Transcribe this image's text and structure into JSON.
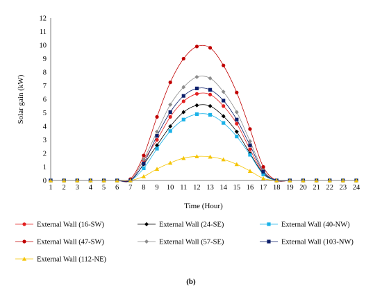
{
  "chart_data": {
    "type": "line",
    "xlabel": "Time (Hour)",
    "ylabel": "Solar gain (kW)",
    "x": [
      1,
      2,
      3,
      4,
      5,
      6,
      7,
      8,
      9,
      10,
      11,
      12,
      13,
      14,
      15,
      16,
      17,
      18,
      19,
      20,
      21,
      22,
      23,
      24
    ],
    "xlim": [
      1,
      24
    ],
    "ylim": [
      0,
      12
    ],
    "yticks": [
      0,
      1,
      2,
      3,
      4,
      5,
      6,
      7,
      8,
      9,
      10,
      11,
      12
    ],
    "grid": false,
    "legend_position": "bottom",
    "series": [
      {
        "name": "External Wall (16-SW)",
        "color": "#e32020",
        "marker": "circle",
        "values": [
          0,
          0,
          0,
          0,
          0,
          0,
          0,
          1.5,
          3.0,
          4.7,
          5.85,
          6.4,
          6.35,
          5.5,
          4.2,
          2.3,
          0.55,
          0,
          0,
          0,
          0,
          0,
          0,
          0
        ]
      },
      {
        "name": "External Wall (24-SE)",
        "color": "#000000",
        "marker": "diamond",
        "values": [
          0,
          0,
          0,
          0,
          0,
          0,
          0,
          1.2,
          2.6,
          4.0,
          5.05,
          5.55,
          5.5,
          4.75,
          3.6,
          2.0,
          0.5,
          0,
          0,
          0,
          0,
          0,
          0,
          0
        ]
      },
      {
        "name": "External Wall (40-NW)",
        "color": "#1ab2e8",
        "marker": "square",
        "values": [
          0,
          0,
          0,
          0,
          0,
          0,
          0,
          0.9,
          2.35,
          3.65,
          4.5,
          4.9,
          4.85,
          4.25,
          3.25,
          1.9,
          0.45,
          0,
          0,
          0,
          0,
          0,
          0,
          0
        ]
      },
      {
        "name": "External Wall (47-SW)",
        "color": "#c00000",
        "marker": "circle",
        "values": [
          0,
          0,
          0,
          0,
          0,
          0,
          0.1,
          1.85,
          4.7,
          7.25,
          9.0,
          9.9,
          9.8,
          8.5,
          6.5,
          3.8,
          1.0,
          0,
          0,
          0,
          0,
          0,
          0,
          0
        ]
      },
      {
        "name": "External Wall (57-SE)",
        "color": "#8c8c8c",
        "marker": "diamond",
        "values": [
          0,
          0,
          0,
          0,
          0,
          0,
          0,
          1.55,
          3.6,
          5.6,
          6.9,
          7.65,
          7.55,
          6.55,
          5.05,
          2.9,
          0.75,
          0,
          0,
          0,
          0,
          0,
          0,
          0
        ]
      },
      {
        "name": "External Wall (103-NW)",
        "color": "#0d1f6b",
        "marker": "square",
        "values": [
          0,
          0,
          0,
          0,
          0,
          0,
          0,
          1.25,
          3.3,
          5.05,
          6.25,
          6.8,
          6.7,
          5.9,
          4.5,
          2.6,
          0.65,
          0,
          0,
          0,
          0,
          0,
          0,
          0
        ]
      },
      {
        "name": "External Wall (112-NE)",
        "color": "#f5c400",
        "marker": "triangle",
        "values": [
          0,
          0,
          0,
          0,
          0,
          0,
          0,
          0.3,
          0.85,
          1.3,
          1.65,
          1.78,
          1.75,
          1.55,
          1.2,
          0.7,
          0.15,
          0,
          0,
          0,
          0,
          0,
          0,
          0
        ]
      }
    ]
  },
  "panel_label": "(b)"
}
